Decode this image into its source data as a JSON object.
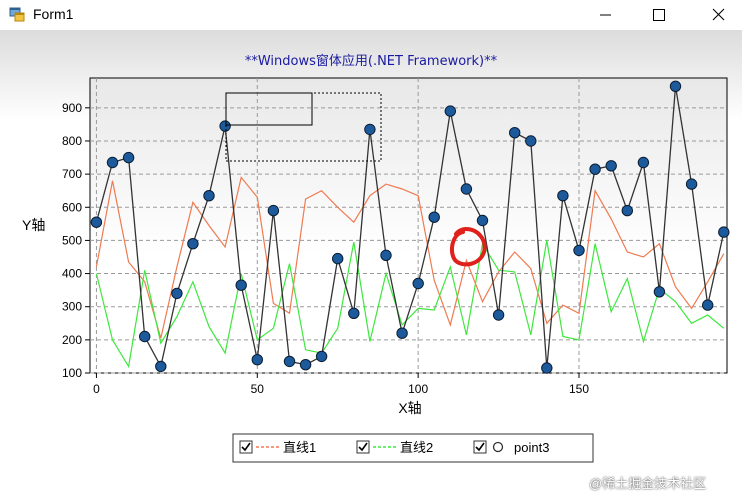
{
  "window": {
    "title": "Form1"
  },
  "chart_data": {
    "type": "line",
    "title": "**Windows窗体应用(.NET Framework)**",
    "xlabel": "X轴",
    "ylabel": "Y轴",
    "xlim": [
      -2,
      196
    ],
    "ylim": [
      100,
      990
    ],
    "xticks": [
      0,
      50,
      100,
      150
    ],
    "yticks": [
      100,
      200,
      300,
      400,
      500,
      600,
      700,
      800,
      900
    ],
    "grid": true,
    "legend_position": "bottom-center",
    "series": [
      {
        "name": "直线1",
        "color": "#f07a50",
        "style": "line",
        "x": [
          0,
          5,
          10,
          15,
          20,
          25,
          30,
          35,
          40,
          45,
          50,
          55,
          60,
          65,
          70,
          75,
          80,
          85,
          90,
          95,
          100,
          105,
          110,
          115,
          120,
          125,
          130,
          135,
          140,
          145,
          150,
          155,
          160,
          165,
          170,
          175,
          180,
          185,
          190,
          195
        ],
        "y": [
          420,
          680,
          435,
          375,
          205,
          420,
          615,
          545,
          480,
          690,
          630,
          310,
          280,
          625,
          650,
          600,
          555,
          635,
          670,
          655,
          635,
          380,
          245,
          440,
          315,
          405,
          465,
          415,
          250,
          305,
          280,
          650,
          565,
          465,
          450,
          490,
          360,
          295,
          375,
          460
        ]
      },
      {
        "name": "直线2",
        "color": "#3de83d",
        "style": "line",
        "x": [
          0,
          5,
          10,
          15,
          20,
          25,
          30,
          35,
          40,
          45,
          50,
          55,
          60,
          65,
          70,
          75,
          80,
          85,
          90,
          95,
          100,
          105,
          110,
          115,
          120,
          125,
          130,
          135,
          140,
          145,
          150,
          155,
          160,
          165,
          170,
          175,
          180,
          185,
          190,
          195
        ],
        "y": [
          400,
          200,
          120,
          410,
          190,
          270,
          375,
          240,
          160,
          400,
          200,
          235,
          430,
          170,
          160,
          235,
          495,
          195,
          400,
          245,
          295,
          290,
          420,
          215,
          490,
          410,
          405,
          215,
          500,
          210,
          200,
          490,
          285,
          385,
          195,
          355,
          315,
          250,
          275,
          235
        ]
      },
      {
        "name": "point3",
        "color": "#333333",
        "marker_color": "#1d5a9c",
        "style": "line-marker",
        "x": [
          0,
          5,
          10,
          15,
          20,
          25,
          30,
          35,
          40,
          45,
          50,
          55,
          60,
          65,
          70,
          75,
          80,
          85,
          90,
          95,
          100,
          105,
          110,
          115,
          120,
          125,
          130,
          135,
          140,
          145,
          150,
          155,
          160,
          165,
          170,
          175,
          180,
          185,
          190,
          195
        ],
        "y": [
          555,
          735,
          750,
          210,
          120,
          340,
          490,
          635,
          845,
          365,
          140,
          590,
          135,
          125,
          150,
          445,
          280,
          835,
          455,
          220,
          370,
          570,
          890,
          655,
          560,
          275,
          825,
          800,
          115,
          635,
          470,
          715,
          725,
          590,
          735,
          345,
          965,
          670,
          305,
          525
        ]
      }
    ]
  },
  "legend": {
    "items": [
      {
        "label": "直线1"
      },
      {
        "label": "直线2"
      },
      {
        "label": "point3"
      }
    ]
  },
  "watermark": {
    "text": "@稀土掘金技术社区"
  }
}
